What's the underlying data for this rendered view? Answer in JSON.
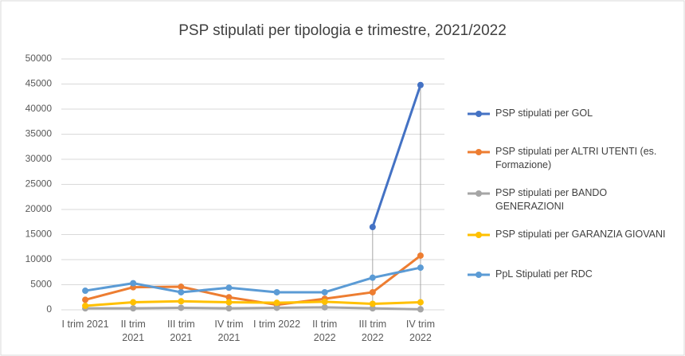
{
  "chart_data": {
    "type": "line",
    "title": "PSP stipulati per tipologia e trimestre, 2021/2022",
    "categories": [
      "I trim 2021",
      "II trim 2021",
      "III trim 2021",
      "IV trim 2021",
      "I trim 2022",
      "II trim 2022",
      "III trim 2022",
      "IV trim 2022"
    ],
    "series": [
      {
        "name": "PSP stipulati per GOL",
        "color": "#4472c4",
        "values": [
          null,
          null,
          null,
          null,
          null,
          null,
          16500,
          44800
        ]
      },
      {
        "name": "PSP stipulati per ALTRI UTENTI (es. Formazione)",
        "color": "#ed7d31",
        "values": [
          2000,
          4500,
          4600,
          2500,
          1000,
          2200,
          3500,
          10800
        ]
      },
      {
        "name": "PSP stipulati per BANDO GENERAZIONI",
        "color": "#a5a5a5",
        "values": [
          300,
          300,
          400,
          300,
          400,
          500,
          300,
          100
        ]
      },
      {
        "name": "PSP stipulati per GARANZIA GIOVANI",
        "color": "#ffc000",
        "values": [
          800,
          1500,
          1700,
          1500,
          1400,
          1600,
          1200,
          1500
        ]
      },
      {
        "name": "PpL Stipulati per RDC",
        "color": "#5b9bd5",
        "values": [
          3800,
          5300,
          3500,
          4400,
          3500,
          3500,
          6400,
          8400
        ]
      }
    ],
    "ylim": [
      0,
      50000
    ],
    "yticks": [
      0,
      5000,
      10000,
      15000,
      20000,
      25000,
      30000,
      35000,
      40000,
      45000,
      50000
    ],
    "grid": true
  }
}
